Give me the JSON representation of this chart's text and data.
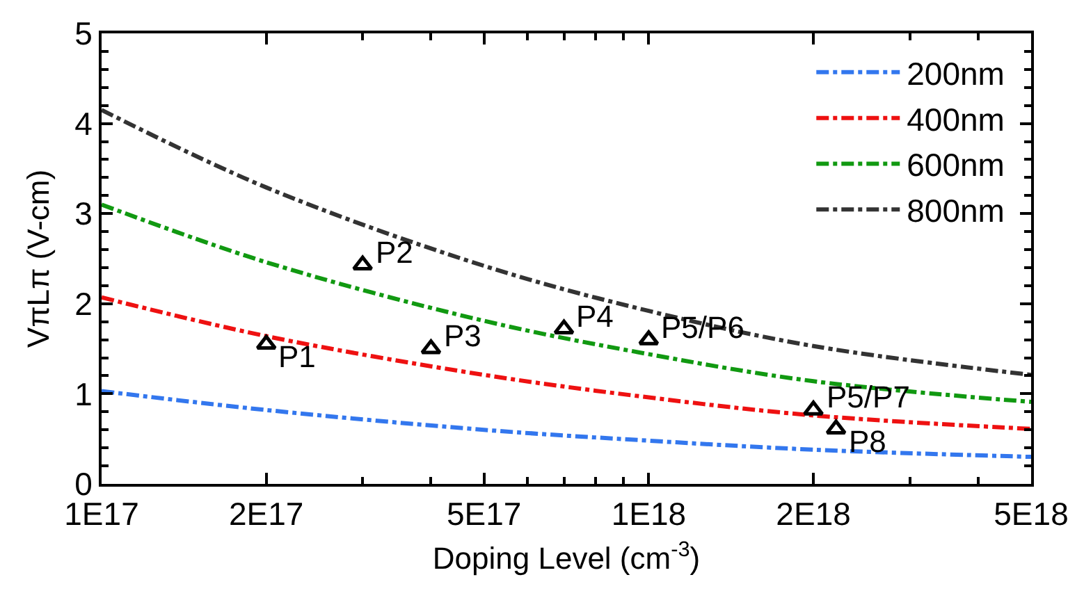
{
  "chart_data": {
    "type": "line",
    "xlabel": "Doping Level (cm$^{-3}$)",
    "ylabel": "VπLπ (V-cm)",
    "log": "x",
    "grid": false,
    "legend": "top right",
    "line_style": "dashed",
    "marker": "none",
    "xlim": [
      1e+17,
      5e+18
    ],
    "xticks": [
      {
        "value": 1e+17,
        "label": "1E17"
      },
      {
        "value": 2e+17,
        "label": "2E17"
      },
      {
        "value": 3e+17,
        "label": null
      },
      {
        "value": 4e+17,
        "label": null
      },
      {
        "value": 5e+17,
        "label": "5E17"
      },
      {
        "value": 6e+17,
        "label": null
      },
      {
        "value": 7e+17,
        "label": null
      },
      {
        "value": 8e+17,
        "label": null
      },
      {
        "value": 9e+17,
        "label": null
      },
      {
        "value": 1e+18,
        "label": "1E18"
      },
      {
        "value": 2e+18,
        "label": "2E18"
      },
      {
        "value": 3e+18,
        "label": null
      },
      {
        "value": 4e+18,
        "label": null
      },
      {
        "value": 5e+18,
        "label": "5E18"
      }
    ],
    "ylim": [
      0,
      5
    ],
    "yticks": [
      0,
      {
        "value": 0.2,
        "label": null
      },
      {
        "value": 0.4,
        "label": null
      },
      {
        "value": 0.6,
        "label": null
      },
      {
        "value": 0.8,
        "label": null
      },
      1,
      {
        "value": 1.2,
        "label": null
      },
      {
        "value": 1.4,
        "label": null
      },
      {
        "value": 1.6,
        "label": null
      },
      {
        "value": 1.8,
        "label": null
      },
      2,
      {
        "value": 2.2,
        "label": null
      },
      {
        "value": 2.4,
        "label": null
      },
      {
        "value": 2.6,
        "label": null
      },
      {
        "value": 2.8,
        "label": null
      },
      3,
      {
        "value": 3.2,
        "label": null
      },
      {
        "value": 3.4,
        "label": null
      },
      {
        "value": 3.6,
        "label": null
      },
      {
        "value": 3.8,
        "label": null
      },
      4,
      {
        "value": 4.2,
        "label": null
      },
      {
        "value": 4.4,
        "label": null
      },
      {
        "value": 4.6,
        "label": null
      },
      {
        "value": 4.8,
        "label": null
      },
      5
    ],
    "x": [
      1e+17,
      2e+17,
      5e+17,
      1e+18,
      2e+18,
      5e+18
    ],
    "series": [
      {
        "name": "200nm",
        "color": "#3377ee",
        "values": [
          1.03,
          0.82,
          0.6,
          0.48,
          0.38,
          0.3
        ]
      },
      {
        "name": "400nm",
        "color": "#ee1111",
        "values": [
          2.07,
          1.64,
          1.21,
          0.96,
          0.76,
          0.61
        ]
      },
      {
        "name": "600nm",
        "color": "#119911",
        "values": [
          3.1,
          2.46,
          1.81,
          1.44,
          1.14,
          0.91
        ]
      },
      {
        "name": "800nm",
        "color": "#333333",
        "values": [
          4.15,
          3.29,
          2.42,
          1.92,
          1.53,
          1.21
        ]
      },
      {
        "type": "scatter",
        "color": "#000000",
        "marker": "triangle",
        "x": [
          2e+17,
          3e+17,
          4e+17,
          7e+17,
          1e+18,
          2e+18,
          2.2e+18
        ],
        "values": [
          1.55,
          2.43,
          1.5,
          1.72,
          1.6,
          0.82,
          0.61
        ]
      }
    ],
    "annotations": [
      {
        "text": "P1",
        "x": 2e+17,
        "y": 1.55
      },
      {
        "text": "P2",
        "x": 3e+17,
        "y": 2.43
      },
      {
        "text": "P3",
        "x": 4e+17,
        "y": 1.5
      },
      {
        "text": "P4",
        "x": 7e+17,
        "y": 1.72
      },
      {
        "text": "P5/P6",
        "x": 1e+18,
        "y": 1.6
      },
      {
        "text": "P5/P7",
        "x": 2e+18,
        "y": 0.82
      },
      {
        "text": "P8",
        "x": 2.2e+18,
        "y": 0.61
      }
    ]
  }
}
